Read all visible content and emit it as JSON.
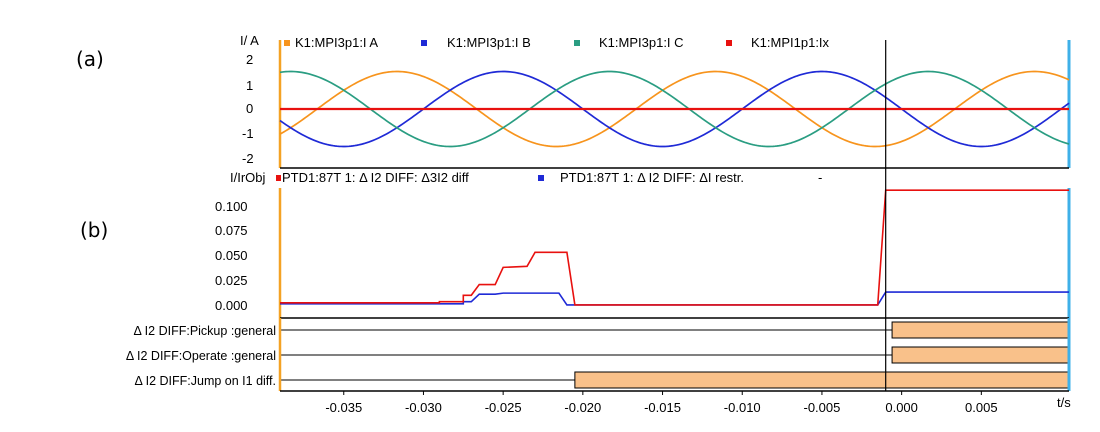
{
  "chart_data": [
    {
      "id": "a",
      "panel_label": "(a)",
      "type": "line",
      "ylabel": "I/ A",
      "ylim": [
        -2,
        2
      ],
      "yticks": [
        "2",
        "1",
        "0",
        "-1",
        "-2"
      ],
      "xlim": [
        -0.039,
        0.0105
      ],
      "series": [
        {
          "name": "K1:MPI3p1:I A",
          "color": "#f7941d",
          "amplitude": 1.5,
          "period_s": 0.02,
          "phase_deg": -60
        },
        {
          "name": "K1:MPI3p1:I B",
          "color": "#1f2ad6",
          "amplitude": 1.5,
          "period_s": 0.02,
          "phase_deg": 180
        },
        {
          "name": "K1:MPI3p1:I C",
          "color": "#2a9d82",
          "amplitude": 1.5,
          "period_s": 0.02,
          "phase_deg": 60
        },
        {
          "name": "K1:MPI1p1:Ix",
          "color": "#e8110f",
          "amplitude": 0.0,
          "period_s": 0.02,
          "phase_deg": 0
        }
      ]
    },
    {
      "id": "b",
      "panel_label": "(b)",
      "type": "line",
      "ylabel": "I/IrObj",
      "ylim": [
        0,
        0.11
      ],
      "yticks": [
        "0.100",
        "0.075",
        "0.050",
        "0.025",
        "0.000"
      ],
      "xlim": [
        -0.039,
        0.0105
      ],
      "series": [
        {
          "name": "PTD1:87T 1: Δ I2 DIFF: Δ3I2 diff",
          "color": "#e8110f",
          "points": [
            [
              -0.039,
              0.003
            ],
            [
              -0.029,
              0.003
            ],
            [
              -0.029,
              0.004
            ],
            [
              -0.0275,
              0.004
            ],
            [
              -0.0275,
              0.01
            ],
            [
              -0.027,
              0.01
            ],
            [
              -0.0265,
              0.02
            ],
            [
              -0.0255,
              0.02
            ],
            [
              -0.025,
              0.036
            ],
            [
              -0.0235,
              0.037
            ],
            [
              -0.023,
              0.05
            ],
            [
              -0.021,
              0.05
            ],
            [
              -0.0205,
              0.001
            ],
            [
              -0.0015,
              0.001
            ],
            [
              -0.001,
              0.108
            ],
            [
              0.0105,
              0.108
            ]
          ]
        },
        {
          "name": "PTD1:87T 1: Δ I2 DIFF: ΔI restr.",
          "color": "#1f2ad6",
          "points": [
            [
              -0.039,
              0.002
            ],
            [
              -0.0275,
              0.002
            ],
            [
              -0.0275,
              0.004
            ],
            [
              -0.027,
              0.004
            ],
            [
              -0.0265,
              0.011
            ],
            [
              -0.0255,
              0.011
            ],
            [
              -0.025,
              0.012
            ],
            [
              -0.0215,
              0.012
            ],
            [
              -0.021,
              0.001
            ],
            [
              -0.0015,
              0.001
            ],
            [
              -0.001,
              0.013
            ],
            [
              0.0105,
              0.013
            ]
          ]
        }
      ],
      "extra_legend_text": "-"
    },
    {
      "id": "c",
      "type": "binary_trace",
      "fill_color": "#f9c18a",
      "xlim": [
        -0.039,
        0.0105
      ],
      "xticks": [
        "-0.035",
        "-0.030",
        "-0.025",
        "-0.020",
        "-0.015",
        "-0.010",
        "-0.005",
        "0.000",
        "0.005"
      ],
      "xtick_values": [
        -0.035,
        -0.03,
        -0.025,
        -0.02,
        -0.015,
        -0.01,
        -0.005,
        0.0,
        0.005
      ],
      "xlabel": "t/s",
      "cursor_t": -0.001,
      "signals": [
        {
          "name": "Δ I2 DIFF:Pickup :general",
          "active_from": -0.0006
        },
        {
          "name": "Δ I2 DIFF:Operate :general",
          "active_from": -0.0006
        },
        {
          "name": "Δ I2 DIFF:Jump on I1 diff.",
          "active_from": -0.0205
        }
      ]
    }
  ]
}
